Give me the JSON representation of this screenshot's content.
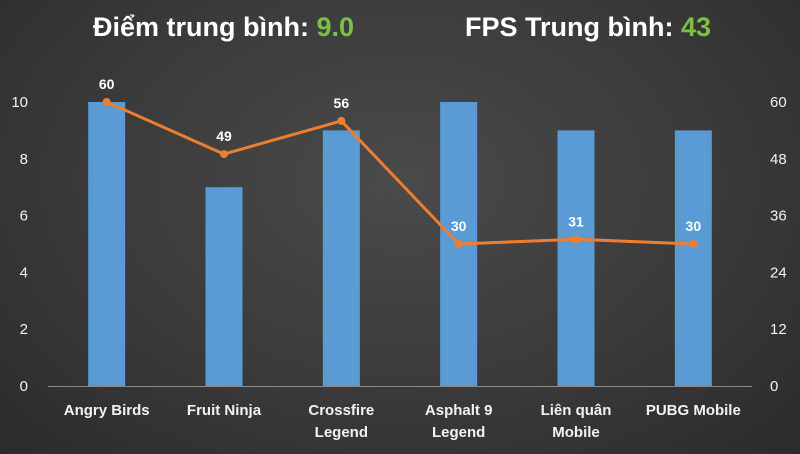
{
  "header": {
    "avg_score_label": "Điểm trung bình:",
    "avg_score_value": "9.0",
    "avg_fps_label": "FPS Trung bình:",
    "avg_fps_value": "43"
  },
  "colors": {
    "bar": "#5b9bd5",
    "line": "#ed7d31",
    "header_value": "#7bc043"
  },
  "chart_data": {
    "type": "bar",
    "categories": [
      [
        "Angry Birds"
      ],
      [
        "Fruit Ninja"
      ],
      [
        "Crossfire",
        "Legend"
      ],
      [
        "Asphalt 9",
        "Legend"
      ],
      [
        "Liên quân",
        "Mobile"
      ],
      [
        "PUBG Mobile"
      ]
    ],
    "series": [
      {
        "type": "bar",
        "axis": "left",
        "values": [
          10,
          7,
          9,
          10,
          9,
          9
        ]
      },
      {
        "type": "line",
        "axis": "right",
        "values": [
          60,
          49,
          56,
          30,
          31,
          30
        ],
        "data_labels": [
          "60",
          "49",
          "56",
          "30",
          "31",
          "30"
        ]
      }
    ],
    "y_left": {
      "min": 0,
      "max": 10,
      "ticks": [
        "0",
        "2",
        "4",
        "6",
        "8",
        "10"
      ]
    },
    "y_right": {
      "min": 0,
      "max": 60,
      "ticks": [
        "0",
        "12",
        "24",
        "36",
        "48",
        "60"
      ]
    },
    "grid": false,
    "legend": "none"
  }
}
